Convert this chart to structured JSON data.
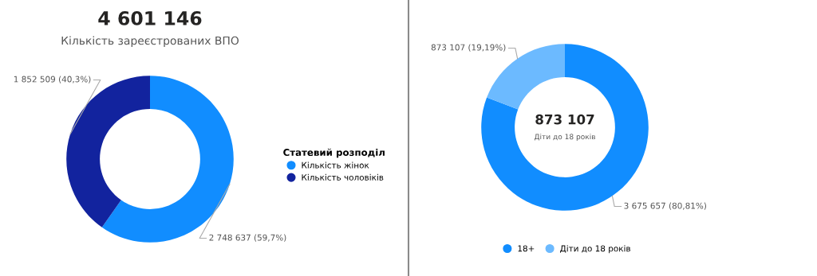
{
  "chart_data": [
    {
      "type": "donut",
      "title": "4 601 146",
      "subtitle": "Кількість зареєстрованих ВПО",
      "legend_title": "Статевий розподіл",
      "legend": "right",
      "categories": [
        "Кількість жінок",
        "Кількість чоловіків"
      ],
      "values": [
        2748637,
        1852509
      ],
      "colors": [
        "#118dff",
        "#12239e"
      ],
      "value_labels": [
        "2 748 637 (59,7%)",
        "1 852 509 (40,3%)"
      ]
    },
    {
      "type": "donut",
      "legend": "bottom",
      "annotations": [
        "873 107",
        "Діти до 18 років"
      ],
      "categories": [
        "18+",
        "Діти до 18 років"
      ],
      "values": [
        3675657,
        873107
      ],
      "colors": [
        "#118dff",
        "#6cbaff"
      ],
      "value_labels": [
        "3 675 657 (80,81%)",
        "873 107 (19,19%)"
      ]
    }
  ]
}
